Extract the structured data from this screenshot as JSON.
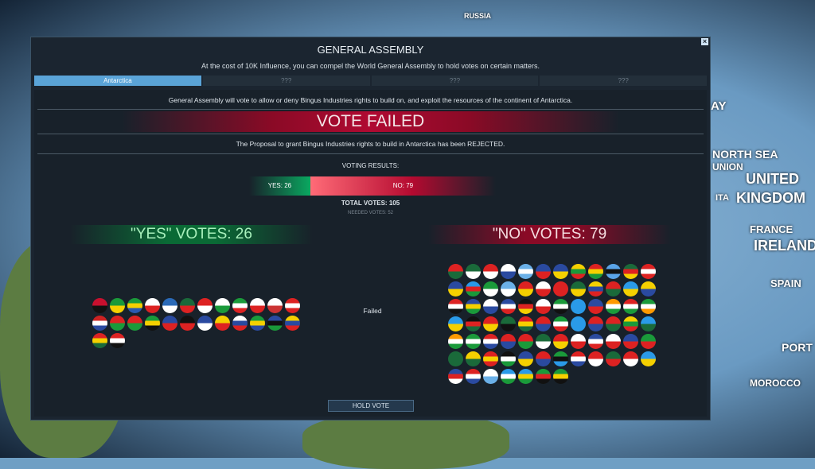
{
  "map_labels": [
    "RUSSIA",
    "AY",
    "NORTH SEA",
    "UNION",
    "UNITED",
    "KINGDOM",
    "ITA",
    "FRANCE",
    "IRELAND",
    "SPAIN",
    "PORT",
    "MOROCCO"
  ],
  "dialog": {
    "title": "GENERAL ASSEMBLY",
    "subtitle": "At the cost of 10K Influence, you can compel the World General Assembly to hold votes on certain matters.",
    "close_icon": "close-icon",
    "tabs": [
      {
        "label": "Antarctica",
        "active": true
      },
      {
        "label": "???"
      },
      {
        "label": "???"
      },
      {
        "label": "???"
      }
    ],
    "description": "General Assembly will vote to allow or deny Bingus Industries rights to build on, and exploit the resources of the continent of Antarctica.",
    "result_banner": "VOTE FAILED",
    "result_text": "The Proposal to grant Bingus Industries rights to build in Antarctica has been REJECTED.",
    "voting_results_label": "VOTING RESULTS:",
    "yes_label": "YES: 26",
    "no_label": "NO: 79",
    "yes_share": 0.248,
    "total_votes": "TOTAL VOTES: 105",
    "needed_votes": "NEEDED VOTES: 52",
    "yes_header": "\"YES\" VOTES: 26",
    "no_header": "\"NO\" VOTES: 79",
    "status": "Failed",
    "hold_vote_label": "HOLD VOTE",
    "yes_flags": [
      "#c8102e,#111",
      "#1a9a3a,#f5d000",
      "#1a9a3a,#f5d000,#2a5ab0",
      "#fff,#d22",
      "#2a6ab8,#fff",
      "#1a6a3a,#d22",
      "#d22,#fff",
      "#fff,#1a9a3a",
      "#1a9a3a,#fff,#d22",
      "#fff,#d22",
      "#fff,#c33",
      "#d22,#fff,#d22",
      "#c22,#fff,#2a4aa0",
      "#d22,#1a9a3a",
      "#d22,#1a9a3a",
      "#1a9a3a,#f5d000,#111",
      "#2a4aa0,#d22",
      "#111,#d22",
      "#2a4aa0,#fff",
      "#f5d000,#d22",
      "#fff,#2a4aa0,#d22",
      "#1a9a3a,#f5d000,#2a4aa0",
      "#2a4aa0,#111,#1a9a3a",
      "#f5d000,#2a4aa0,#d22",
      "#d22,#f5d000,#1a6a3a",
      "#d22,#fff,#111"
    ],
    "no_flags": [
      "#d22,#1a6a3a",
      "#1a6a3a,#fff",
      "#d22,#fff",
      "#fff,#2a4aa0",
      "#6ab0e8,#fff,#6ab0e8",
      "#2a4aa0,#d22",
      "#2a4aa0,#f5d000",
      "#f5d000,#1a9a3a,#d22",
      "#d22,#f5d000,#1a9a3a",
      "#5aa4e8,#111,#5aa4e8",
      "#1a6a3a,#d22,#f5d000",
      "#d22,#fff,#d22",
      "#2a4aa0,#f5d000",
      "#2a9ae8,#d22,#1a9a3a",
      "#1a9a3a,#fff",
      "#6ab0e8,#fff",
      "#d22,#f5d000",
      "#fff,#d22",
      "#d22",
      "#1a6a3a,#f5d000",
      "#f5d000,#2a4aa0,#d22",
      "#d22,#1a6a3a",
      "#2a9ae8,#f5d000",
      "#f5d000,#2a4aa0",
      "#d22,#fff,#111",
      "#2a4aa0,#f5d000,#1a9a3a",
      "#fff,#2a4aa0",
      "#2a4aa0,#fff,#d22",
      "#111,#d22,#f5d000",
      "#fff,#d22",
      "#1a9a3a,#fff,#111",
      "#2a9ae8",
      "#2a4aa0,#d22",
      "#f90,#fff,#1a9a3a",
      "#d22,#fff,#1a9a3a",
      "#1a9a3a,#fff,#f90",
      "#2a9ae8,#f5d000",
      "#111,#d22,#1a6a3a",
      "#d22,#f5d000",
      "#1a6a3a,#111",
      "#d22,#f5d000,#1a6a3a",
      "#d22,#2a4aa0",
      "#1a9a3a,#fff,#d22",
      "#2a9ae8",
      "#d22,#2a4aa0",
      "#d22,#1a6a3a",
      "#f5d000,#1a9a3a,#d22",
      "#2a9ae8,#1a6a3a",
      "#f90,#fff,#1a9a3a",
      "#1a9a3a,#fff,#1a9a3a",
      "#d22,#fff,#2a4aa0",
      "#d22,#2a4aa0",
      "#d22,#1a9a3a",
      "#1a6a3a,#fff",
      "#d22,#f5d000",
      "#fff,#d22",
      "#2a4aa0,#fff,#d22",
      "#fff,#d22",
      "#2a4aa0,#d22",
      "#1a9a3a,#d22",
      "#1a6a3a",
      "#f5d000,#1a6a3a",
      "#d22,#f5d000,#d22",
      "#111,#fff,#1a9a3a",
      "#2a4aa0,#f5d000",
      "#d22,#2a4aa0",
      "#1a9a3a,#111,#2a9ae8",
      "#d22,#fff,#2a4aa0",
      "#d22,#fff",
      "#1a6a3a,#d22",
      "#d22,#fff",
      "#2a9ae8,#f5d000",
      "#2a4aa0,#d22,#fff",
      "#d22,#fff,#2a4aa0",
      "#fff,#6ab0e8",
      "#2a9ae8,#fff,#1a9a3a",
      "#2a9ae8,#f5d000,#1a9a3a",
      "#1a9a3a,#d22,#111",
      "#1a9a3a,#f5d000,#111"
    ]
  }
}
